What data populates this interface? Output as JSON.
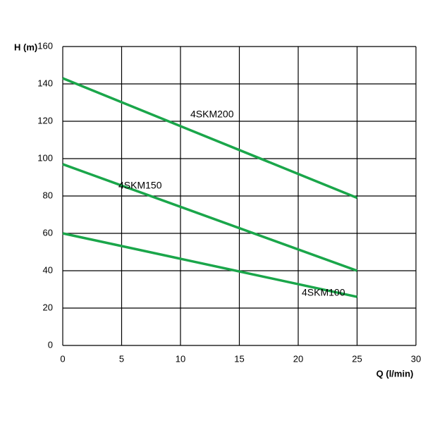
{
  "chart_data": {
    "type": "line",
    "x_label": "Q (l/min)",
    "y_label": "H (m)",
    "x": [
      0,
      25
    ],
    "series": [
      {
        "name": "4SKM200",
        "color": "#1aa64a",
        "values": [
          143,
          79
        ]
      },
      {
        "name": "4SKM150",
        "color": "#1aa64a",
        "values": [
          97,
          40
        ]
      },
      {
        "name": "4SKM100",
        "color": "#1aa64a",
        "values": [
          60,
          26
        ]
      }
    ],
    "xlim": [
      0,
      30
    ],
    "xticks": [
      0,
      5,
      10,
      15,
      20,
      25,
      30
    ],
    "ylim": [
      0,
      160
    ],
    "yticks": [
      0,
      20,
      40,
      60,
      80,
      100,
      120,
      140,
      160
    ],
    "grid": true
  }
}
